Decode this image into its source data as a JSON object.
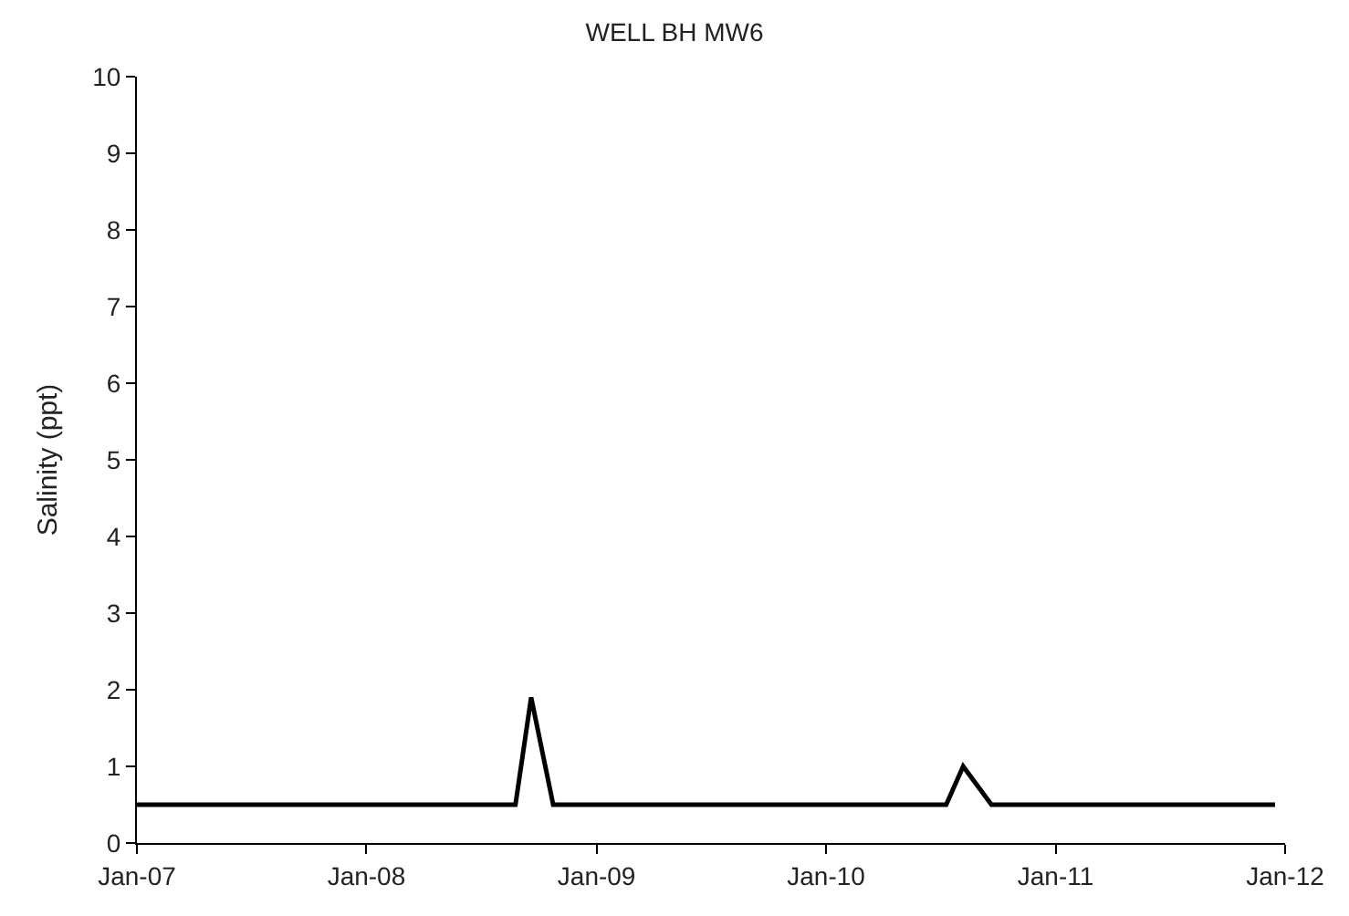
{
  "chart_data": {
    "type": "line",
    "title": "WELL BH MW6",
    "ylabel": "Salinity (ppt)",
    "x": [
      "2007-01-01",
      "2008-08-25",
      "2008-09-19",
      "2008-10-24",
      "2010-07-11",
      "2010-08-07",
      "2010-09-21",
      "2011-12-16"
    ],
    "series": [
      {
        "color": "#000000",
        "values": [
          0.5,
          0.5,
          1.9,
          0.5,
          0.5,
          1.0,
          0.5,
          0.5
        ]
      }
    ],
    "xlim": [
      "2007-01-01",
      "2012-01-01"
    ],
    "xticks": [
      {
        "value": "2007-01-01",
        "label": "Jan-07"
      },
      {
        "value": "2008-01-01",
        "label": "Jan-08"
      },
      {
        "value": "2009-01-01",
        "label": "Jan-09"
      },
      {
        "value": "2010-01-01",
        "label": "Jan-10"
      },
      {
        "value": "2011-01-01",
        "label": "Jan-11"
      },
      {
        "value": "2012-01-01",
        "label": "Jan-12"
      }
    ],
    "ylim": [
      0,
      10
    ],
    "yticks": [
      0,
      1,
      2,
      3,
      4,
      5,
      6,
      7,
      8,
      9,
      10
    ],
    "grid": false,
    "legend": false,
    "marker": "none",
    "line_style": "solid"
  }
}
